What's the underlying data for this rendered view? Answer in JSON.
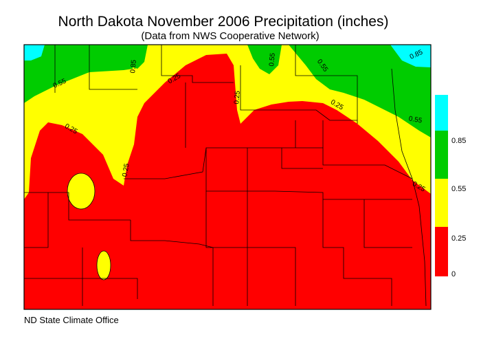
{
  "header": {
    "title": "North Dakota November 2006 Precipitation (inches)",
    "subtitle": "(Data from NWS Cooperative Network)"
  },
  "legend": {
    "classes": [
      {
        "color": "#00ffff",
        "label": null
      },
      {
        "color": "#00cc00",
        "label": "0.85"
      },
      {
        "color": "#ffff00",
        "label": "0.55"
      },
      {
        "color": "#ff0000",
        "label": "0.25"
      }
    ],
    "bottom_label": "0"
  },
  "contour_labels": [
    "0.55",
    "0.85",
    "0.25",
    "0.55",
    "0.55",
    "0.85",
    "0.25",
    "0.25",
    "0.55",
    "0.25",
    "0.25",
    "0.25"
  ],
  "footer": "ND State Climate Office"
}
